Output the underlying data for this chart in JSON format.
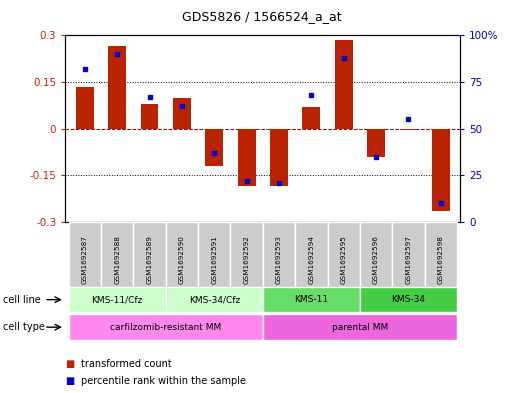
{
  "title": "GDS5826 / 1566524_a_at",
  "samples": [
    "GSM1692587",
    "GSM1692588",
    "GSM1692589",
    "GSM1692590",
    "GSM1692591",
    "GSM1692592",
    "GSM1692593",
    "GSM1692594",
    "GSM1692595",
    "GSM1692596",
    "GSM1692597",
    "GSM1692598"
  ],
  "transformed_count": [
    0.135,
    0.265,
    0.08,
    0.1,
    -0.12,
    -0.185,
    -0.185,
    0.07,
    0.285,
    -0.09,
    -0.005,
    -0.265
  ],
  "percentile_rank": [
    82,
    90,
    67,
    62,
    37,
    22,
    21,
    68,
    88,
    35,
    55,
    10
  ],
  "bar_color": "#bb2200",
  "dot_color": "#0000cc",
  "ylim_left": [
    -0.3,
    0.3
  ],
  "ylim_right": [
    0,
    100
  ],
  "yticks_left": [
    -0.3,
    -0.15,
    0.0,
    0.15,
    0.3
  ],
  "ytick_labels_left": [
    "-0.3",
    "-0.15",
    "0",
    "0.15",
    "0.3"
  ],
  "yticks_right": [
    0,
    25,
    50,
    75,
    100
  ],
  "ytick_labels_right": [
    "0",
    "25",
    "50",
    "75",
    "100%"
  ],
  "cell_line_groups": [
    {
      "label": "KMS-11/Cfz",
      "start": 0,
      "end": 2,
      "color": "#ccffcc"
    },
    {
      "label": "KMS-34/Cfz",
      "start": 3,
      "end": 5,
      "color": "#ccffcc"
    },
    {
      "label": "KMS-11",
      "start": 6,
      "end": 8,
      "color": "#66dd66"
    },
    {
      "label": "KMS-34",
      "start": 9,
      "end": 11,
      "color": "#44cc44"
    }
  ],
  "cell_type_groups": [
    {
      "label": "carfilzomib-resistant MM",
      "start": 0,
      "end": 5,
      "color": "#ff88ee"
    },
    {
      "label": "parental MM",
      "start": 6,
      "end": 11,
      "color": "#ee66dd"
    }
  ],
  "legend_items": [
    {
      "color": "#bb2200",
      "label": "transformed count"
    },
    {
      "color": "#0000cc",
      "label": "percentile rank within the sample"
    }
  ],
  "cell_line_row_label": "cell line",
  "cell_type_row_label": "cell type",
  "gray_bg": "#cccccc"
}
